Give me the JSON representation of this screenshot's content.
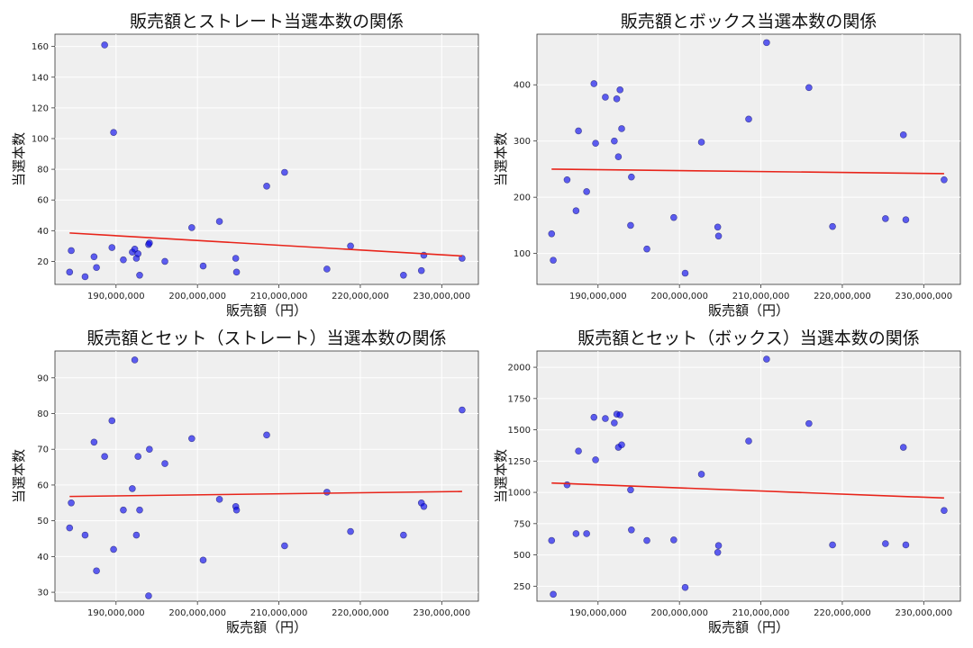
{
  "chart_data": [
    {
      "type": "scatter",
      "title": "販売額とストレート当選本数の関係",
      "xlabel": "販売額（円）",
      "ylabel": "当選本数",
      "xlim": [
        182500000,
        234500000
      ],
      "ylim": [
        5,
        168
      ],
      "xticks": [
        190000000,
        200000000,
        210000000,
        220000000,
        230000000
      ],
      "xtick_labels": [
        "190,000,000",
        "200,000,000",
        "210,000,000",
        "220,000,000",
        "230,000,000"
      ],
      "yticks": [
        20,
        40,
        60,
        80,
        100,
        120,
        140,
        160
      ],
      "ytick_labels": [
        "20",
        "40",
        "60",
        "80",
        "100",
        "120",
        "140",
        "160"
      ],
      "grid": true,
      "x": [
        184300000,
        184500000,
        186200000,
        187300000,
        187600000,
        188600000,
        189500000,
        189700000,
        190900000,
        192000000,
        192300000,
        192500000,
        192700000,
        192900000,
        194000000,
        194100000,
        196000000,
        199300000,
        200700000,
        202700000,
        204700000,
        204800000,
        208500000,
        210700000,
        215900000,
        218800000,
        225300000,
        227500000,
        227800000,
        232500000
      ],
      "y": [
        13,
        27,
        10,
        23,
        16,
        161,
        29,
        104,
        21,
        26,
        28,
        22,
        25,
        11,
        31,
        32,
        20,
        42,
        17,
        46,
        22,
        13,
        69,
        78,
        15,
        30,
        11,
        14,
        24,
        22
      ],
      "trend": {
        "x": [
          184300000,
          232500000
        ],
        "y": [
          38.5,
          23.5
        ]
      }
    },
    {
      "type": "scatter",
      "title": "販売額とボックス当選本数の関係",
      "xlabel": "販売額（円）",
      "ylabel": "当選本数",
      "xlim": [
        182500000,
        234500000
      ],
      "ylim": [
        45,
        490
      ],
      "xticks": [
        190000000,
        200000000,
        210000000,
        220000000,
        230000000
      ],
      "xtick_labels": [
        "190,000,000",
        "200,000,000",
        "210,000,000",
        "220,000,000",
        "230,000,000"
      ],
      "yticks": [
        100,
        200,
        300,
        400
      ],
      "ytick_labels": [
        "100",
        "200",
        "300",
        "400"
      ],
      "grid": true,
      "x": [
        184300000,
        184500000,
        186200000,
        187300000,
        187600000,
        188600000,
        189500000,
        189700000,
        190900000,
        192000000,
        192300000,
        192500000,
        192700000,
        192900000,
        194000000,
        194100000,
        196000000,
        199300000,
        200700000,
        202700000,
        204700000,
        204800000,
        208500000,
        210700000,
        215900000,
        218800000,
        225300000,
        227500000,
        227800000,
        232500000
      ],
      "y": [
        135,
        88,
        231,
        176,
        318,
        210,
        402,
        296,
        378,
        300,
        375,
        272,
        391,
        322,
        150,
        236,
        108,
        164,
        65,
        298,
        147,
        131,
        339,
        475,
        395,
        148,
        162,
        311,
        160,
        231
      ],
      "trend": {
        "x": [
          184300000,
          232500000
        ],
        "y": [
          250,
          242
        ]
      }
    },
    {
      "type": "scatter",
      "title": "販売額とセット（ストレート）当選本数の関係",
      "xlabel": "販売額（円）",
      "ylabel": "当選本数",
      "xlim": [
        182500000,
        234500000
      ],
      "ylim": [
        27.5,
        97.5
      ],
      "xticks": [
        190000000,
        200000000,
        210000000,
        220000000,
        230000000
      ],
      "xtick_labels": [
        "190,000,000",
        "200,000,000",
        "210,000,000",
        "220,000,000",
        "230,000,000"
      ],
      "yticks": [
        30,
        40,
        50,
        60,
        70,
        80,
        90
      ],
      "ytick_labels": [
        "30",
        "40",
        "50",
        "60",
        "70",
        "80",
        "90"
      ],
      "grid": true,
      "x": [
        184300000,
        184500000,
        186200000,
        187300000,
        187600000,
        188600000,
        189500000,
        189700000,
        190900000,
        192000000,
        192300000,
        192500000,
        192700000,
        192900000,
        194000000,
        194100000,
        196000000,
        199300000,
        200700000,
        202700000,
        204700000,
        204800000,
        208500000,
        210700000,
        215900000,
        218800000,
        225300000,
        227500000,
        227800000,
        232500000
      ],
      "y": [
        48,
        55,
        46,
        72,
        36,
        68,
        78,
        42,
        53,
        59,
        95,
        46,
        68,
        53,
        29,
        70,
        66,
        73,
        39,
        56,
        54,
        53,
        74,
        43,
        58,
        47,
        46,
        55,
        54,
        81
      ],
      "trend": {
        "x": [
          184300000,
          232500000
        ],
        "y": [
          56.8,
          58.2
        ]
      }
    },
    {
      "type": "scatter",
      "title": "販売額とセット（ボックス）当選本数の関係",
      "xlabel": "販売額（円）",
      "ylabel": "当選本数",
      "xlim": [
        182500000,
        234500000
      ],
      "ylim": [
        130,
        2130
      ],
      "xticks": [
        190000000,
        200000000,
        210000000,
        220000000,
        230000000
      ],
      "xtick_labels": [
        "190,000,000",
        "200,000,000",
        "210,000,000",
        "220,000,000",
        "230,000,000"
      ],
      "yticks": [
        250,
        500,
        750,
        1000,
        1250,
        1500,
        1750,
        2000
      ],
      "ytick_labels": [
        "250",
        "500",
        "750",
        "1000",
        "1250",
        "1500",
        "1750",
        "2000"
      ],
      "grid": true,
      "x": [
        184300000,
        184500000,
        186200000,
        187300000,
        187600000,
        188600000,
        189500000,
        189700000,
        190900000,
        192000000,
        192300000,
        192500000,
        192700000,
        192900000,
        194000000,
        194100000,
        196000000,
        199300000,
        200700000,
        202700000,
        204700000,
        204800000,
        208500000,
        210700000,
        215900000,
        218800000,
        225300000,
        227500000,
        227800000,
        232500000
      ],
      "y": [
        615,
        185,
        1060,
        670,
        1330,
        670,
        1600,
        1260,
        1590,
        1555,
        1625,
        1360,
        1620,
        1380,
        1020,
        700,
        615,
        620,
        240,
        1145,
        520,
        575,
        1410,
        2065,
        1550,
        580,
        590,
        1360,
        580,
        855
      ],
      "trend": {
        "x": [
          184300000,
          232500000
        ],
        "y": [
          1075,
          955
        ]
      }
    }
  ]
}
